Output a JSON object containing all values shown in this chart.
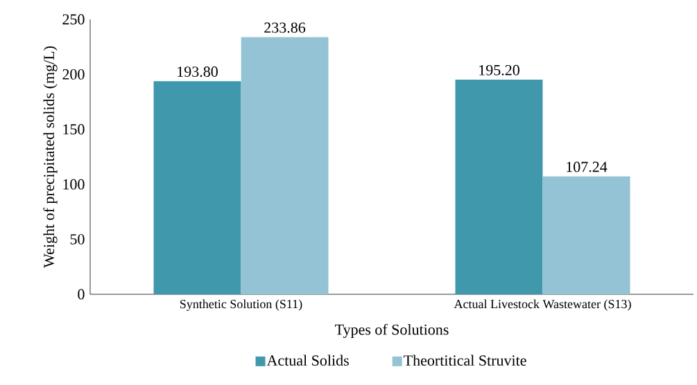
{
  "chart_data": {
    "type": "bar",
    "xlabel": "Types of Solutions",
    "ylabel": "Weight of precipitated solids (mg/L)",
    "categories": [
      "Synthetic Solution (S11)",
      "Actual Livestock Wastewater (S13)"
    ],
    "series": [
      {
        "name": "Actual Solids",
        "color": "#4098ad",
        "values": [
          193.8,
          195.2
        ],
        "value_labels": [
          "193.80",
          "195.20"
        ]
      },
      {
        "name": "Theortitical Struvite",
        "color": "#93c3d4",
        "values": [
          233.86,
          107.24
        ],
        "value_labels": [
          "233.86",
          "107.24"
        ]
      }
    ],
    "ylim": [
      0,
      250
    ],
    "yticks": [
      0,
      50,
      100,
      150,
      200,
      250
    ],
    "grid": false,
    "legend": "bottom"
  }
}
